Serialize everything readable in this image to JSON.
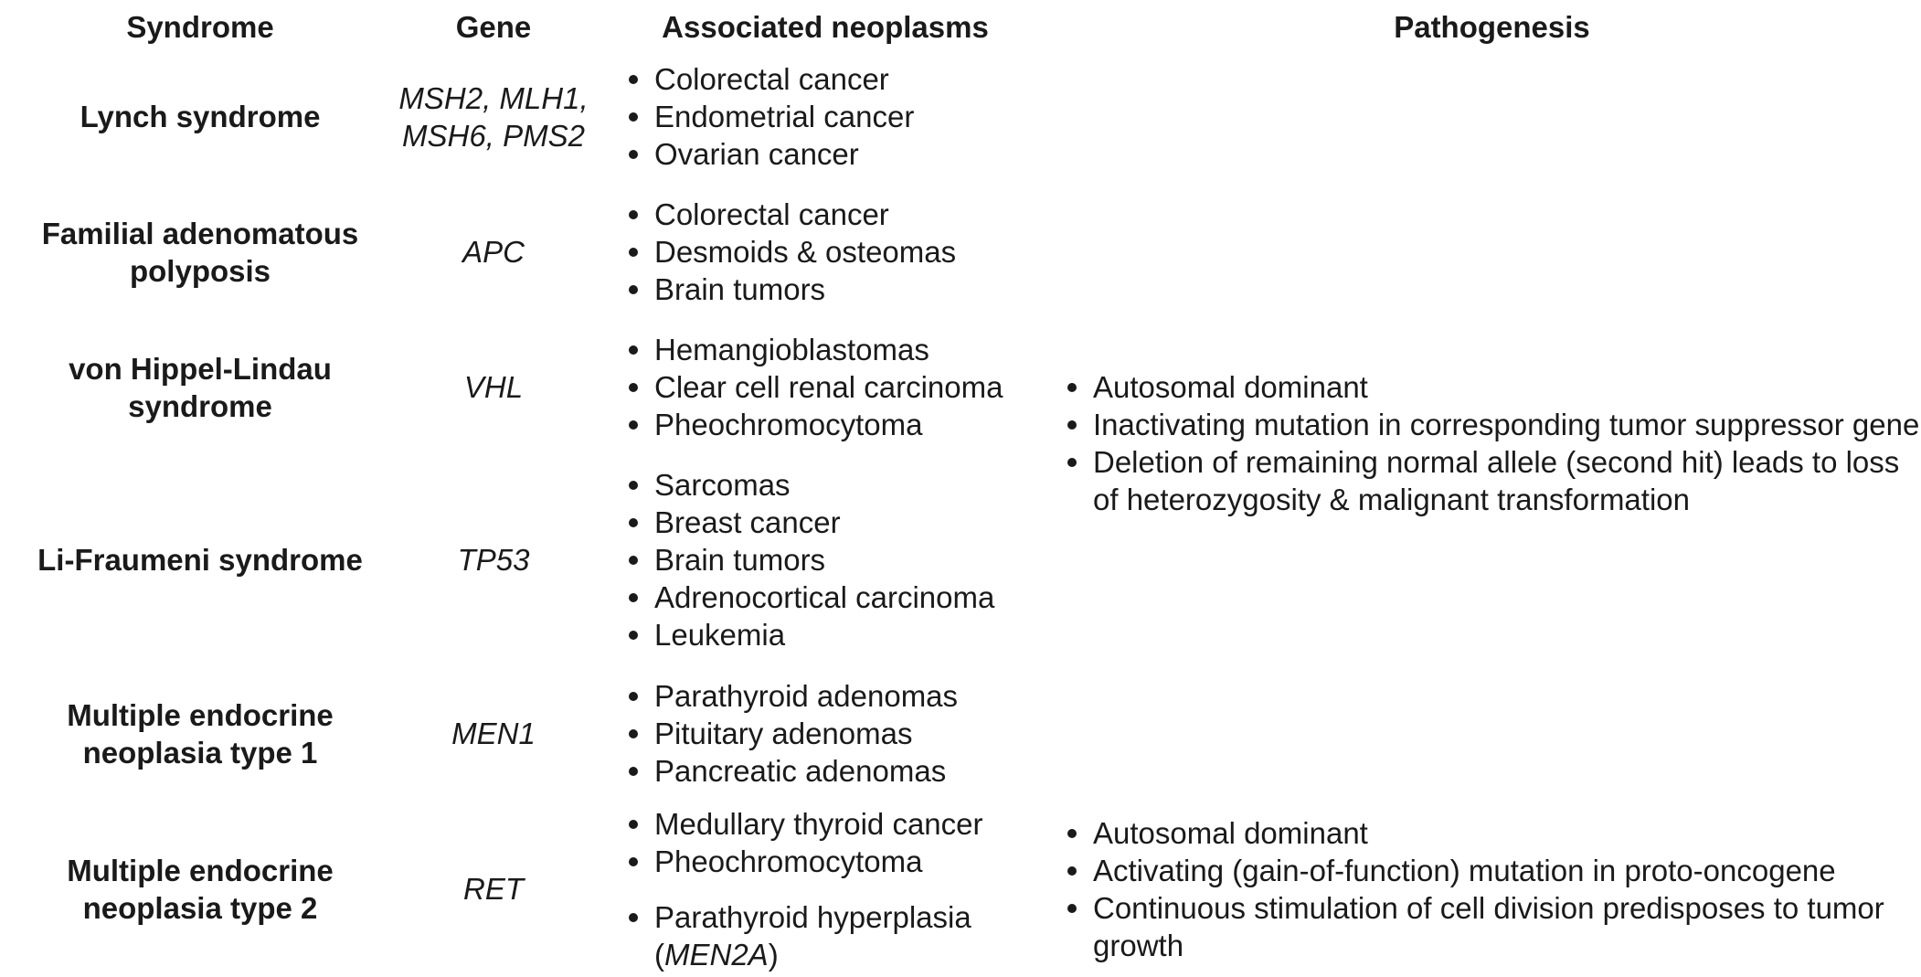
{
  "headers": {
    "syndrome": "Syndrome",
    "gene": "Gene",
    "neoplasms": "Associated neoplasms",
    "pathogenesis": "Pathogenesis"
  },
  "rows": [
    {
      "syndrome": "Lynch syndrome",
      "gene_line1": "MSH2, MLH1,",
      "gene_line2": "MSH6, PMS2",
      "neoplasms": [
        "Colorectal cancer",
        "Endometrial cancer",
        "Ovarian cancer"
      ]
    },
    {
      "syndrome_line1": "Familial adenomatous",
      "syndrome_line2": "polyposis",
      "gene": "APC",
      "neoplasms": [
        "Colorectal cancer",
        "Desmoids & osteomas",
        "Brain tumors"
      ]
    },
    {
      "syndrome_line1": "von Hippel-Lindau",
      "syndrome_line2": "syndrome",
      "gene": "VHL",
      "neoplasms": [
        "Hemangioblastomas",
        "Clear cell renal carcinoma",
        "Pheochromocytoma"
      ]
    },
    {
      "syndrome": "Li-Fraumeni syndrome",
      "gene": "TP53",
      "neoplasms": [
        "Sarcomas",
        "Breast cancer",
        "Brain tumors",
        "Adrenocortical carcinoma",
        "Leukemia"
      ]
    },
    {
      "syndrome_line1": "Multiple endocrine",
      "syndrome_line2": "neoplasia type 1",
      "gene": "MEN1",
      "neoplasms": [
        "Parathyroid adenomas",
        "Pituitary adenomas",
        "Pancreatic adenomas"
      ]
    },
    {
      "syndrome_line1": "Multiple endocrine",
      "syndrome_line2": "neoplasia type 2",
      "gene": "RET",
      "neoplasms": [
        "Medullary thyroid cancer",
        "Pheochromocytoma",
        "Parathyroid hyperplasia"
      ],
      "neoplasm_note_open": "(",
      "neoplasm_note_italic": "MEN2A",
      "neoplasm_note_close": ")"
    }
  ],
  "pathogenesis_suppressor": [
    "Autosomal dominant",
    "Inactivating mutation in corresponding tumor suppressor gene",
    "Deletion of remaining normal allele (second hit) leads to loss of heterozygosity & malignant transformation"
  ],
  "pathogenesis_oncogene": [
    "Autosomal dominant",
    "Activating (gain-of-function) mutation in proto-oncogene",
    "Continuous stimulation of cell division predisposes to tumor growth"
  ]
}
